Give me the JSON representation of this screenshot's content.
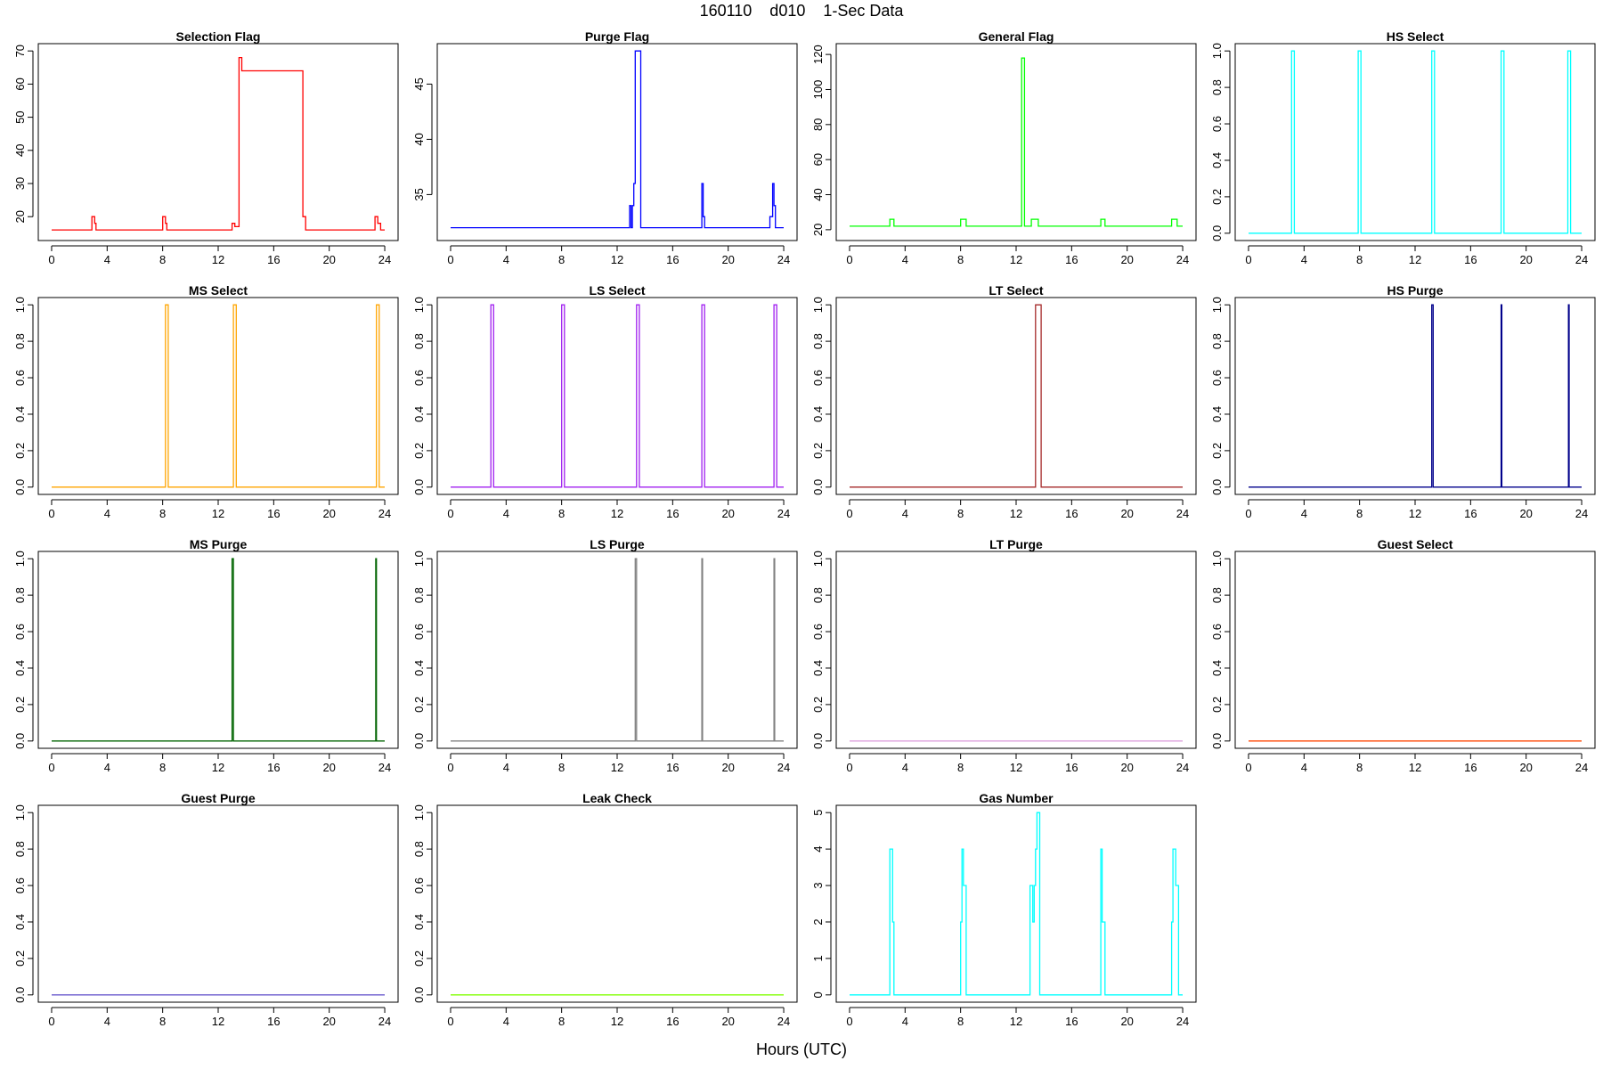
{
  "figure": {
    "title": "160110    d010    1-Sec Data",
    "xlabel": "Hours (UTC)"
  },
  "chart_data": [
    {
      "type": "line",
      "title": "Selection Flag",
      "color": "#ff0000",
      "xlim": [
        0,
        24
      ],
      "ylim": [
        15,
        70
      ],
      "xticks": [
        0,
        4,
        8,
        12,
        16,
        20,
        24
      ],
      "yticks": [
        20,
        30,
        40,
        50,
        60,
        70
      ],
      "x": [
        0,
        2.9,
        2.9,
        3.1,
        3.1,
        3.2,
        3.2,
        8.0,
        8.0,
        8.2,
        8.2,
        8.3,
        8.3,
        13.0,
        13.0,
        13.2,
        13.2,
        13.5,
        13.5,
        13.7,
        13.7,
        18.1,
        18.1,
        18.3,
        18.3,
        23.3,
        23.3,
        23.5,
        23.5,
        23.7,
        23.7,
        24
      ],
      "y": [
        16,
        16,
        20,
        20,
        18,
        18,
        16,
        16,
        20,
        20,
        18,
        18,
        16,
        16,
        18,
        18,
        17,
        17,
        68,
        68,
        64,
        64,
        20,
        20,
        16,
        16,
        20,
        20,
        18,
        18,
        16,
        16
      ]
    },
    {
      "type": "line",
      "title": "Purge Flag",
      "color": "#0000ff",
      "xlim": [
        0,
        24
      ],
      "ylim": [
        31.5,
        48
      ],
      "xticks": [
        0,
        4,
        8,
        12,
        16,
        20,
        24
      ],
      "yticks": [
        35,
        40,
        45
      ],
      "x": [
        0,
        12.9,
        12.9,
        13.0,
        13.0,
        13.1,
        13.1,
        13.2,
        13.2,
        13.3,
        13.3,
        13.7,
        13.7,
        18.1,
        18.1,
        18.2,
        18.2,
        18.3,
        18.3,
        23.0,
        23.0,
        23.2,
        23.2,
        23.3,
        23.3,
        23.4,
        23.4,
        23.6,
        23.6,
        24
      ],
      "y": [
        32,
        32,
        34,
        34,
        32,
        32,
        34,
        34,
        36,
        36,
        48,
        48,
        32,
        32,
        36,
        36,
        33,
        33,
        32,
        32,
        33,
        33,
        36,
        36,
        34,
        34,
        32,
        32,
        32,
        32
      ]
    },
    {
      "type": "line",
      "title": "General Flag",
      "color": "#00ff00",
      "xlim": [
        0,
        24
      ],
      "ylim": [
        18,
        122
      ],
      "xticks": [
        0,
        4,
        8,
        12,
        16,
        20,
        24
      ],
      "yticks": [
        20,
        40,
        60,
        80,
        100,
        120
      ],
      "x": [
        0,
        2.9,
        2.9,
        3.2,
        3.2,
        8.0,
        8.0,
        8.4,
        8.4,
        12.4,
        12.4,
        12.6,
        12.6,
        13.1,
        13.1,
        13.6,
        13.6,
        18.1,
        18.1,
        18.4,
        18.4,
        23.2,
        23.2,
        23.6,
        23.6,
        24
      ],
      "y": [
        22,
        22,
        26,
        26,
        22,
        22,
        26,
        26,
        22,
        22,
        118,
        118,
        22,
        22,
        26,
        26,
        22,
        22,
        26,
        26,
        22,
        22,
        26,
        26,
        22,
        22
      ]
    },
    {
      "type": "line",
      "title": "HS Select",
      "color": "#00ffff",
      "xlim": [
        0,
        24
      ],
      "ylim": [
        0,
        1
      ],
      "xticks": [
        0,
        4,
        8,
        12,
        16,
        20,
        24
      ],
      "yticks": [
        0.0,
        0.2,
        0.4,
        0.6,
        0.8,
        1.0
      ],
      "x": [
        0,
        3.1,
        3.1,
        3.3,
        3.3,
        7.9,
        7.9,
        8.1,
        8.1,
        13.2,
        13.2,
        13.4,
        13.4,
        18.2,
        18.2,
        18.4,
        18.4,
        23.0,
        23.0,
        23.2,
        23.2,
        24
      ],
      "y": [
        0,
        0,
        1,
        1,
        0,
        0,
        1,
        1,
        0,
        0,
        1,
        1,
        0,
        0,
        1,
        1,
        0,
        0,
        1,
        1,
        0,
        0
      ]
    },
    {
      "type": "line",
      "title": "MS Select",
      "color": "#ffa500",
      "xlim": [
        0,
        24
      ],
      "ylim": [
        0,
        1
      ],
      "xticks": [
        0,
        4,
        8,
        12,
        16,
        20,
        24
      ],
      "yticks": [
        0.0,
        0.2,
        0.4,
        0.6,
        0.8,
        1.0
      ],
      "x": [
        0,
        8.2,
        8.2,
        8.4,
        8.4,
        13.1,
        13.1,
        13.3,
        13.3,
        23.4,
        23.4,
        23.6,
        23.6,
        24
      ],
      "y": [
        0,
        0,
        1,
        1,
        0,
        0,
        1,
        1,
        0,
        0,
        1,
        1,
        0,
        0
      ]
    },
    {
      "type": "line",
      "title": "LS Select",
      "color": "#a020f0",
      "xlim": [
        0,
        24
      ],
      "ylim": [
        0,
        1
      ],
      "xticks": [
        0,
        4,
        8,
        12,
        16,
        20,
        24
      ],
      "yticks": [
        0.0,
        0.2,
        0.4,
        0.6,
        0.8,
        1.0
      ],
      "x": [
        0,
        2.9,
        2.9,
        3.1,
        3.1,
        8.0,
        8.0,
        8.2,
        8.2,
        13.4,
        13.4,
        13.6,
        13.6,
        18.1,
        18.1,
        18.3,
        18.3,
        23.3,
        23.3,
        23.5,
        23.5,
        24
      ],
      "y": [
        0,
        0,
        1,
        1,
        0,
        0,
        1,
        1,
        0,
        0,
        1,
        1,
        0,
        0,
        1,
        1,
        0,
        0,
        1,
        1,
        0,
        0
      ]
    },
    {
      "type": "line",
      "title": "LT Select",
      "color": "#a52a2a",
      "xlim": [
        0,
        24
      ],
      "ylim": [
        0,
        1
      ],
      "xticks": [
        0,
        4,
        8,
        12,
        16,
        20,
        24
      ],
      "yticks": [
        0.0,
        0.2,
        0.4,
        0.6,
        0.8,
        1.0
      ],
      "x": [
        0,
        13.4,
        13.4,
        13.8,
        13.8,
        24
      ],
      "y": [
        0,
        0,
        1,
        1,
        0,
        0
      ]
    },
    {
      "type": "line",
      "title": "HS Purge",
      "color": "#00008b",
      "xlim": [
        0,
        24
      ],
      "ylim": [
        0,
        1
      ],
      "xticks": [
        0,
        4,
        8,
        12,
        16,
        20,
        24
      ],
      "yticks": [
        0.0,
        0.2,
        0.4,
        0.6,
        0.8,
        1.0
      ],
      "x": [
        0,
        13.2,
        13.2,
        13.3,
        13.3,
        18.2,
        18.2,
        18.25,
        18.25,
        23.05,
        23.05,
        23.1,
        23.1,
        24
      ],
      "y": [
        0,
        0,
        1,
        1,
        0,
        0,
        1,
        1,
        0,
        0,
        1,
        1,
        0,
        0
      ]
    },
    {
      "type": "line",
      "title": "MS Purge",
      "color": "#006400",
      "xlim": [
        0,
        24
      ],
      "ylim": [
        0,
        1
      ],
      "xticks": [
        0,
        4,
        8,
        12,
        16,
        20,
        24
      ],
      "yticks": [
        0.0,
        0.2,
        0.4,
        0.6,
        0.8,
        1.0
      ],
      "x": [
        0,
        13.0,
        13.0,
        13.1,
        13.1,
        23.35,
        23.35,
        23.4,
        23.4,
        24
      ],
      "y": [
        0,
        0,
        1,
        1,
        0,
        0,
        1,
        1,
        0,
        0
      ]
    },
    {
      "type": "line",
      "title": "LS Purge",
      "color": "#808080",
      "xlim": [
        0,
        24
      ],
      "ylim": [
        0,
        1
      ],
      "xticks": [
        0,
        4,
        8,
        12,
        16,
        20,
        24
      ],
      "yticks": [
        0.0,
        0.2,
        0.4,
        0.6,
        0.8,
        1.0
      ],
      "x": [
        0,
        13.3,
        13.3,
        13.4,
        13.4,
        18.1,
        18.1,
        18.15,
        18.15,
        23.3,
        23.3,
        23.35,
        23.35,
        24
      ],
      "y": [
        0,
        0,
        1,
        1,
        0,
        0,
        1,
        1,
        0,
        0,
        1,
        1,
        0,
        0
      ]
    },
    {
      "type": "line",
      "title": "LT Purge",
      "color": "#dda0dd",
      "xlim": [
        0,
        24
      ],
      "ylim": [
        0,
        1
      ],
      "xticks": [
        0,
        4,
        8,
        12,
        16,
        20,
        24
      ],
      "yticks": [
        0.0,
        0.2,
        0.4,
        0.6,
        0.8,
        1.0
      ],
      "x": [
        0,
        24
      ],
      "y": [
        0,
        0
      ]
    },
    {
      "type": "line",
      "title": "Guest Select",
      "color": "#ff4500",
      "xlim": [
        0,
        24
      ],
      "ylim": [
        0,
        1
      ],
      "xticks": [
        0,
        4,
        8,
        12,
        16,
        20,
        24
      ],
      "yticks": [
        0.0,
        0.2,
        0.4,
        0.6,
        0.8,
        1.0
      ],
      "x": [
        0,
        24
      ],
      "y": [
        0,
        0
      ]
    },
    {
      "type": "line",
      "title": "Guest Purge",
      "color": "#6a5acd",
      "xlim": [
        0,
        24
      ],
      "ylim": [
        0,
        1
      ],
      "xticks": [
        0,
        4,
        8,
        12,
        16,
        20,
        24
      ],
      "yticks": [
        0.0,
        0.2,
        0.4,
        0.6,
        0.8,
        1.0
      ],
      "x": [
        0,
        24
      ],
      "y": [
        0,
        0
      ]
    },
    {
      "type": "line",
      "title": "Leak Check",
      "color": "#7fff00",
      "xlim": [
        0,
        24
      ],
      "ylim": [
        0,
        1
      ],
      "xticks": [
        0,
        4,
        8,
        12,
        16,
        20,
        24
      ],
      "yticks": [
        0.0,
        0.2,
        0.4,
        0.6,
        0.8,
        1.0
      ],
      "x": [
        0,
        24
      ],
      "y": [
        0,
        0
      ]
    },
    {
      "type": "line",
      "title": "Gas Number",
      "color": "#00ffff",
      "xlim": [
        0,
        24
      ],
      "ylim": [
        0,
        5
      ],
      "xticks": [
        0,
        4,
        8,
        12,
        16,
        20,
        24
      ],
      "yticks": [
        0,
        1,
        2,
        3,
        4,
        5
      ],
      "x": [
        0,
        2.9,
        2.9,
        3.1,
        3.1,
        3.2,
        3.2,
        8.0,
        8.0,
        8.1,
        8.1,
        8.2,
        8.2,
        8.4,
        8.4,
        13.0,
        13.0,
        13.2,
        13.2,
        13.3,
        13.3,
        13.4,
        13.4,
        13.5,
        13.5,
        13.7,
        13.7,
        18.1,
        18.1,
        18.2,
        18.2,
        18.4,
        18.4,
        23.2,
        23.2,
        23.3,
        23.3,
        23.5,
        23.5,
        23.7,
        23.7,
        24
      ],
      "y": [
        0,
        0,
        4,
        4,
        2,
        2,
        0,
        0,
        2,
        2,
        4,
        4,
        3,
        3,
        0,
        0,
        3,
        3,
        2,
        2,
        3,
        3,
        4,
        4,
        5,
        5,
        0,
        0,
        4,
        4,
        2,
        2,
        0,
        0,
        2,
        2,
        4,
        4,
        3,
        3,
        0,
        0
      ]
    }
  ]
}
